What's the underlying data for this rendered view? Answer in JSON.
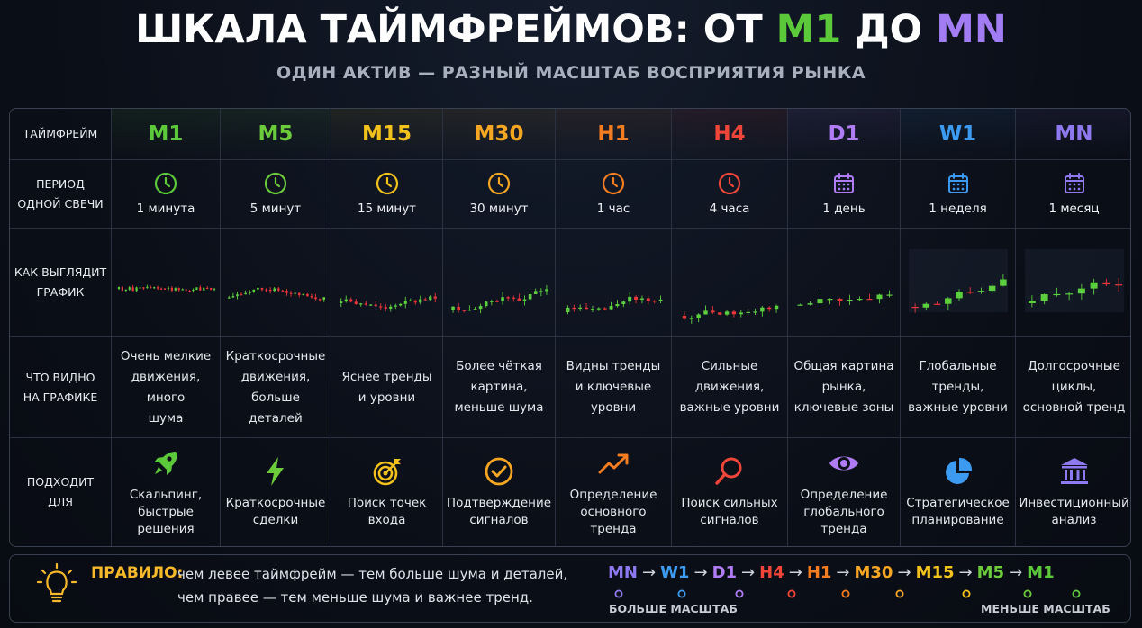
{
  "header": {
    "title_main": "ШКАЛА ТАЙМФРЕЙМОВ: ОТ ",
    "title_m1": "M1",
    "title_mid": " ДО ",
    "title_mn": "MN",
    "subtitle": "ОДИН АКТИВ — РАЗНЫЙ МАСШТАБ ВОСПРИЯТИЯ РЫНКА"
  },
  "row_headers": {
    "timeframe": "ТАЙМФРЕЙМ",
    "period_l1": "ПЕРИОД",
    "period_l2": "ОДНОЙ СВЕЧИ",
    "chart_l1": "КАК ВЫГЛЯДИТ",
    "chart_l2": "ГРАФИК",
    "see_l1": "ЧТО ВИДНО",
    "see_l2": "НА ГРАФИКЕ",
    "use": "ПОДХОДИТ ДЛЯ"
  },
  "colors": {
    "M1": "#5cc93a",
    "M5": "#6ccb3b",
    "M15": "#f2c21c",
    "M30": "#f5a623",
    "H1": "#f57d1f",
    "H4": "#f0463a",
    "D1": "#b07cf5",
    "W1": "#3c9bf0",
    "MN": "#8f79f0",
    "up": "#5ccf3f",
    "down": "#e8363a"
  },
  "timeframes": [
    {
      "code": "M1",
      "period": "1 минута",
      "icon": "clock-icon",
      "desc": [
        "Очень мелкие",
        "движения, много",
        "шума"
      ],
      "use_icon": "rocket-icon",
      "use": [
        "Скальпинг,",
        "быстрые",
        "решения"
      ]
    },
    {
      "code": "M5",
      "period": "5 минут",
      "icon": "clock-icon",
      "desc": [
        "Краткосрочные",
        "движения,",
        "больше деталей"
      ],
      "use_icon": "lightning-icon",
      "use": [
        "Краткосрочные",
        "сделки"
      ]
    },
    {
      "code": "M15",
      "period": "15 минут",
      "icon": "clock-icon",
      "desc": [
        "Яснее тренды",
        "и уровни"
      ],
      "use_icon": "target-icon",
      "use": [
        "Поиск точек",
        "входа"
      ]
    },
    {
      "code": "M30",
      "period": "30 минут",
      "icon": "clock-icon",
      "desc": [
        "Более чёткая",
        "картина,",
        "меньше шума"
      ],
      "use_icon": "check-circle-icon",
      "use": [
        "Подтверждение",
        "сигналов"
      ]
    },
    {
      "code": "H1",
      "period": "1 час",
      "icon": "clock-icon",
      "desc": [
        "Видны тренды",
        "и ключевые",
        "уровни"
      ],
      "use_icon": "trend-arrow-icon",
      "use": [
        "Определение",
        "основного",
        "тренда"
      ]
    },
    {
      "code": "H4",
      "period": "4 часа",
      "icon": "clock-icon",
      "desc": [
        "Сильные",
        "движения,",
        "важные уровни"
      ],
      "use_icon": "magnifier-icon",
      "use": [
        "Поиск сильных",
        "сигналов"
      ]
    },
    {
      "code": "D1",
      "period": "1 день",
      "icon": "calendar-icon",
      "desc": [
        "Общая картина",
        "рынка,",
        "ключевые зоны"
      ],
      "use_icon": "eye-icon",
      "use": [
        "Определение",
        "глобального",
        "тренда"
      ]
    },
    {
      "code": "W1",
      "period": "1 неделя",
      "icon": "calendar-icon",
      "desc": [
        "Глобальные",
        "тренды,",
        "важные уровни"
      ],
      "use_icon": "pie-chart-icon",
      "use": [
        "Стратегическое",
        "планирование"
      ]
    },
    {
      "code": "MN",
      "period": "1 месяц",
      "icon": "calendar-icon",
      "desc": [
        "Долгосрочные",
        "циклы,",
        "основной тренд"
      ],
      "use_icon": "bank-icon",
      "use": [
        "Инвестиционный",
        "анализ"
      ]
    }
  ],
  "footer": {
    "rule_label": "ПРАВИЛО:",
    "rule_line1": "чем левее таймфрейм — тем больше шума и деталей,",
    "rule_line2": "чем правее — тем меньше шума и важнее тренд.",
    "sequence": [
      "MN",
      "W1",
      "D1",
      "H4",
      "H1",
      "M30",
      "M15",
      "M5",
      "M1"
    ],
    "arrow": "→",
    "scale_left": "БОЛЬШЕ МАСШТАБ",
    "scale_right": "МЕНЬШЕ МАСШТАБ"
  }
}
